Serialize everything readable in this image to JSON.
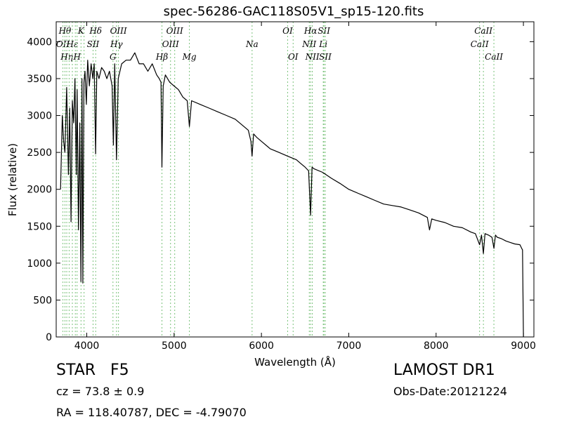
{
  "chart_data": {
    "type": "line",
    "title": "spec-56286-GAC118S05V1_sp15-120.fits",
    "xlabel": "Wavelength (Å)",
    "ylabel": "Flux (relative)",
    "xlim": [
      3650,
      9120
    ],
    "ylim": [
      0,
      4270
    ],
    "grid": false,
    "x_ticks": [
      4000,
      5000,
      6000,
      7000,
      8000,
      9000
    ],
    "y_ticks": [
      0,
      500,
      1000,
      1500,
      2000,
      2500,
      3000,
      3500,
      4000
    ],
    "series": [
      {
        "x": [
          3700,
          3720,
          3735,
          3750,
          3770,
          3790,
          3805,
          3820,
          3835,
          3850,
          3865,
          3880,
          3890,
          3905,
          3920,
          3933,
          3945,
          3955,
          3968,
          3980,
          3995,
          4010,
          4030,
          4050,
          4070,
          4085,
          4101,
          4115,
          4140,
          4170,
          4200,
          4230,
          4260,
          4290,
          4305,
          4320,
          4340,
          4360,
          4400,
          4450,
          4500,
          4550,
          4600,
          4650,
          4700,
          4750,
          4800,
          4830,
          4850,
          4861,
          4875,
          4900,
          4950,
          5000,
          5050,
          5100,
          5150,
          5175,
          5200,
          5300,
          5400,
          5500,
          5600,
          5700,
          5800,
          5850,
          5880,
          5893,
          5910,
          5950,
          6000,
          6100,
          6200,
          6300,
          6400,
          6450,
          6500,
          6540,
          6563,
          6580,
          6600,
          6700,
          6800,
          6900,
          7000,
          7100,
          7200,
          7300,
          7400,
          7500,
          7600,
          7700,
          7800,
          7900,
          7925,
          7950,
          8000,
          8100,
          8200,
          8300,
          8400,
          8450,
          8498,
          8520,
          8542,
          8560,
          8600,
          8640,
          8662,
          8680,
          8700,
          8750,
          8800,
          8850,
          8900,
          8960,
          8980,
          8990,
          9000
        ],
        "y": [
          2000,
          3000,
          2650,
          2500,
          3380,
          2200,
          3100,
          1560,
          3200,
          2900,
          3500,
          2200,
          3350,
          1450,
          2900,
          750,
          3500,
          730,
          3450,
          3600,
          3150,
          3750,
          3400,
          3700,
          3500,
          3700,
          2480,
          3600,
          3500,
          3650,
          3600,
          3500,
          3600,
          3400,
          2600,
          3700,
          2400,
          3500,
          3700,
          3750,
          3750,
          3850,
          3700,
          3700,
          3600,
          3700,
          3550,
          3500,
          3450,
          2300,
          3400,
          3550,
          3450,
          3400,
          3350,
          3250,
          3200,
          2850,
          3200,
          3150,
          3100,
          3050,
          3000,
          2950,
          2850,
          2800,
          2650,
          2450,
          2750,
          2700,
          2650,
          2550,
          2500,
          2450,
          2400,
          2350,
          2300,
          2250,
          1650,
          2300,
          2280,
          2230,
          2150,
          2080,
          2000,
          1950,
          1900,
          1850,
          1800,
          1780,
          1760,
          1720,
          1680,
          1620,
          1450,
          1600,
          1580,
          1550,
          1500,
          1480,
          1420,
          1400,
          1250,
          1380,
          1130,
          1400,
          1380,
          1350,
          1200,
          1380,
          1350,
          1330,
          1300,
          1280,
          1260,
          1250,
          1200,
          1180,
          0
        ]
      }
    ],
    "spectral_lines": [
      {
        "wl": 3727,
        "label": "OII",
        "row": 1
      },
      {
        "wl": 3750,
        "label": "Hθ",
        "row": 0
      },
      {
        "wl": 3771,
        "label": "Hη",
        "row": 2
      },
      {
        "wl": 3798,
        "label": "",
        "row": -1
      },
      {
        "wl": 3835,
        "label": "Hε",
        "row": 1
      },
      {
        "wl": 3869,
        "label": "",
        "row": -1
      },
      {
        "wl": 3889,
        "label": "H",
        "row": 2
      },
      {
        "wl": 3934,
        "label": "K",
        "row": 0
      },
      {
        "wl": 3969,
        "label": "",
        "row": -1
      },
      {
        "wl": 4072,
        "label": "SII",
        "row": 1
      },
      {
        "wl": 4102,
        "label": "Hδ",
        "row": 0
      },
      {
        "wl": 4300,
        "label": "G",
        "row": 2
      },
      {
        "wl": 4340,
        "label": "Hγ",
        "row": 1
      },
      {
        "wl": 4363,
        "label": "OIII",
        "row": 0
      },
      {
        "wl": 4861,
        "label": "Hβ",
        "row": 2
      },
      {
        "wl": 4959,
        "label": "OIII",
        "row": 1
      },
      {
        "wl": 5007,
        "label": "OIII",
        "row": 0
      },
      {
        "wl": 5175,
        "label": "Mg",
        "row": 2
      },
      {
        "wl": 5893,
        "label": "Na",
        "row": 1
      },
      {
        "wl": 6300,
        "label": "OI",
        "row": 0
      },
      {
        "wl": 6363,
        "label": "OI",
        "row": 2
      },
      {
        "wl": 6548,
        "label": "NII",
        "row": 1
      },
      {
        "wl": 6563,
        "label": "Hα",
        "row": 0
      },
      {
        "wl": 6583,
        "label": "NII",
        "row": 2
      },
      {
        "wl": 6708,
        "label": "Li",
        "row": 1
      },
      {
        "wl": 6716,
        "label": "SII",
        "row": 0
      },
      {
        "wl": 6731,
        "label": "SII",
        "row": 2
      },
      {
        "wl": 8498,
        "label": "CaII",
        "row": 1
      },
      {
        "wl": 8542,
        "label": "CaII",
        "row": 0
      },
      {
        "wl": 8662,
        "label": "CaII",
        "row": 2
      }
    ],
    "colors": {
      "spectrum": "#000000",
      "line_markers": "#7ac27a"
    }
  },
  "info": {
    "class": "STAR",
    "subclass": "F5",
    "cz": "cz = 73.8 ± 0.9",
    "radec": "RA = 118.40787, DEC = -4.79070",
    "survey": "LAMOST DR1",
    "obs_date": "Obs-Date:20121224"
  }
}
